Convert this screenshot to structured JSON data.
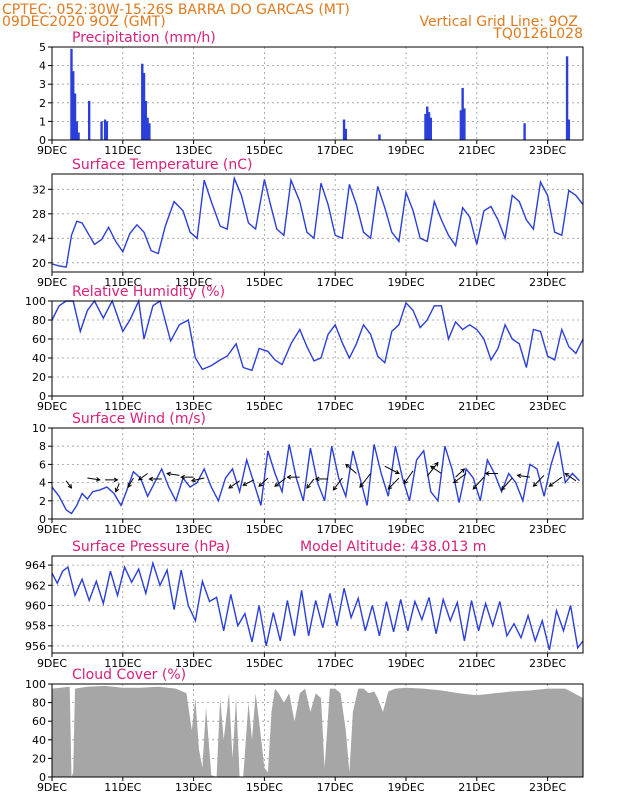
{
  "header": {
    "line1": "CPTEC:   052:30W-15:26S  BARRA DO GARCAS (MT)",
    "line2": "09DEC2020 9OZ (GMT)",
    "grid_note": "Vertical Grid Line: 9OZ",
    "code": "TQ0126L028"
  },
  "colors": {
    "header": "#e07a1e",
    "panel_title": "#d8217a",
    "series": "#2b3fd9",
    "cloud": "#a6a6a6"
  },
  "x_axis": {
    "ticks": [
      "9DEC",
      "11DEC",
      "13DEC",
      "15DEC",
      "17DEC",
      "19DEC",
      "21DEC",
      "23DEC"
    ],
    "tick_days": [
      0,
      2,
      4,
      6,
      8,
      10,
      12,
      14
    ],
    "range_days": [
      0,
      15
    ]
  },
  "chart_data": [
    {
      "id": "precip",
      "type": "bar",
      "title": "Precipitation (mm/h)",
      "ylim": [
        0,
        5
      ],
      "yticks": [
        0,
        1,
        2,
        3,
        4,
        5
      ],
      "x_days": [
        0.55,
        0.6,
        0.65,
        0.7,
        0.75,
        1.05,
        1.4,
        1.5,
        1.55,
        2.55,
        2.6,
        2.65,
        2.7,
        2.75,
        8.25,
        8.3,
        9.25,
        10.55,
        10.6,
        10.65,
        10.7,
        11.55,
        11.6,
        11.65,
        13.35,
        14.55,
        14.6
      ],
      "values": [
        4.9,
        3.7,
        2.5,
        1.0,
        0.4,
        2.1,
        1.0,
        1.1,
        1.0,
        4.1,
        3.6,
        2.1,
        1.2,
        0.9,
        1.1,
        0.6,
        0.3,
        1.4,
        1.8,
        1.5,
        1.2,
        1.6,
        2.8,
        1.7,
        0.9,
        4.5,
        1.1
      ]
    },
    {
      "id": "temp",
      "type": "line",
      "title": "Surface Temperature (nC)",
      "ylim": [
        18.5,
        34.5
      ],
      "yticks": [
        20,
        24,
        28,
        32
      ],
      "x_days": [
        0,
        0.2,
        0.4,
        0.55,
        0.7,
        0.85,
        1.0,
        1.2,
        1.4,
        1.6,
        1.8,
        2.0,
        2.2,
        2.4,
        2.6,
        2.8,
        3.0,
        3.2,
        3.45,
        3.7,
        3.9,
        4.1,
        4.3,
        4.5,
        4.75,
        4.95,
        5.15,
        5.35,
        5.55,
        5.75,
        6.0,
        6.15,
        6.35,
        6.55,
        6.75,
        7.0,
        7.2,
        7.4,
        7.6,
        7.8,
        8.0,
        8.2,
        8.4,
        8.6,
        8.8,
        9.0,
        9.2,
        9.4,
        9.6,
        9.8,
        10.0,
        10.2,
        10.4,
        10.6,
        10.8,
        11.0,
        11.2,
        11.4,
        11.6,
        11.8,
        12.0,
        12.2,
        12.4,
        12.6,
        12.8,
        13.0,
        13.2,
        13.4,
        13.6,
        13.8,
        14.0,
        14.2,
        14.4,
        14.6,
        14.8,
        15.0
      ],
      "values": [
        19.8,
        19.5,
        19.3,
        24.5,
        26.8,
        26.5,
        25.0,
        23.0,
        23.8,
        25.8,
        23.5,
        21.8,
        24.8,
        26.2,
        25.0,
        22.0,
        21.5,
        26.0,
        30.0,
        28.5,
        25.0,
        24.0,
        33.5,
        30.0,
        26.0,
        25.5,
        33.8,
        31.0,
        26.5,
        25.5,
        33.6,
        30.0,
        25.5,
        24.5,
        33.5,
        30.0,
        25.0,
        24.0,
        33.0,
        29.5,
        24.5,
        24.0,
        32.8,
        29.5,
        25.0,
        24.0,
        32.5,
        29.0,
        25.0,
        23.5,
        31.5,
        28.5,
        24.0,
        23.5,
        30.0,
        27.0,
        24.5,
        22.8,
        29.0,
        27.5,
        23.0,
        28.5,
        29.2,
        27.0,
        24.0,
        31.0,
        30.0,
        27.0,
        25.5,
        33.2,
        31.0,
        25.0,
        24.5,
        31.8,
        31.0,
        29.5
      ]
    },
    {
      "id": "rh",
      "type": "line",
      "title": "Relative Humidity (%)",
      "ylim": [
        0,
        100
      ],
      "yticks": [
        0,
        20,
        40,
        60,
        80,
        100
      ],
      "x_days": [
        0,
        0.2,
        0.4,
        0.6,
        0.8,
        1.0,
        1.2,
        1.45,
        1.7,
        2.0,
        2.2,
        2.45,
        2.6,
        2.85,
        3.05,
        3.35,
        3.6,
        3.85,
        4.05,
        4.25,
        4.5,
        4.75,
        4.95,
        5.2,
        5.4,
        5.65,
        5.85,
        6.1,
        6.3,
        6.5,
        6.75,
        7.0,
        7.2,
        7.4,
        7.6,
        7.8,
        8.0,
        8.2,
        8.4,
        8.6,
        8.8,
        9.0,
        9.2,
        9.4,
        9.6,
        9.8,
        10.0,
        10.2,
        10.4,
        10.6,
        10.8,
        11.0,
        11.2,
        11.4,
        11.6,
        11.8,
        12.0,
        12.2,
        12.4,
        12.6,
        12.8,
        13.0,
        13.2,
        13.4,
        13.6,
        13.8,
        14.0,
        14.2,
        14.4,
        14.6,
        14.8,
        15.0
      ],
      "values": [
        80,
        95,
        100,
        100,
        68,
        90,
        100,
        82,
        100,
        68,
        80,
        100,
        60,
        95,
        100,
        58,
        75,
        80,
        40,
        28,
        32,
        38,
        42,
        55,
        30,
        27,
        50,
        47,
        38,
        33,
        55,
        70,
        52,
        37,
        40,
        65,
        75,
        56,
        40,
        55,
        75,
        65,
        42,
        35,
        68,
        75,
        98,
        90,
        72,
        80,
        95,
        95,
        60,
        78,
        70,
        75,
        70,
        60,
        38,
        50,
        75,
        60,
        55,
        30,
        70,
        68,
        42,
        38,
        70,
        52,
        45,
        60
      ]
    },
    {
      "id": "wind",
      "type": "line",
      "title": "Surface Wind (m/s)",
      "ylim": [
        0,
        10
      ],
      "yticks": [
        0,
        2,
        4,
        6,
        8,
        10
      ],
      "x_days": [
        0,
        0.2,
        0.4,
        0.55,
        0.7,
        0.85,
        1.0,
        1.15,
        1.35,
        1.55,
        1.75,
        1.95,
        2.1,
        2.3,
        2.5,
        2.7,
        2.9,
        3.1,
        3.3,
        3.5,
        3.7,
        3.9,
        4.1,
        4.3,
        4.5,
        4.7,
        4.9,
        5.1,
        5.3,
        5.5,
        5.7,
        5.9,
        6.1,
        6.3,
        6.5,
        6.7,
        6.9,
        7.1,
        7.3,
        7.5,
        7.7,
        7.9,
        8.1,
        8.3,
        8.5,
        8.7,
        8.9,
        9.1,
        9.3,
        9.5,
        9.7,
        9.9,
        10.1,
        10.3,
        10.5,
        10.7,
        10.9,
        11.1,
        11.3,
        11.5,
        11.7,
        11.9,
        12.1,
        12.3,
        12.5,
        12.7,
        12.9,
        13.1,
        13.3,
        13.5,
        13.7,
        13.9,
        14.1,
        14.3,
        14.5,
        14.7,
        14.9
      ],
      "values": [
        3.5,
        2.5,
        1.0,
        0.6,
        1.5,
        2.8,
        2.2,
        3.0,
        3.2,
        3.5,
        2.8,
        1.5,
        3.0,
        5.2,
        4.5,
        2.5,
        4.0,
        5.5,
        3.5,
        2.0,
        4.5,
        3.5,
        4.0,
        5.5,
        3.5,
        2.0,
        4.5,
        5.5,
        3.0,
        6.5,
        4.0,
        1.5,
        7.5,
        5.0,
        3.0,
        8.2,
        4.5,
        2.0,
        7.8,
        4.0,
        2.0,
        8.0,
        4.5,
        2.5,
        7.5,
        4.5,
        1.5,
        8.2,
        5.0,
        2.5,
        8.0,
        4.5,
        2.0,
        6.5,
        7.5,
        3.0,
        2.0,
        8.0,
        5.5,
        1.8,
        5.5,
        4.5,
        2.0,
        6.5,
        5.0,
        3.0,
        5.0,
        4.0,
        2.0,
        6.0,
        5.5,
        2.5,
        6.0,
        8.5,
        4.0,
        5.0,
        4.2
      ],
      "arrows": [
        {
          "x": 0.4,
          "y": 4.2,
          "dx": 0.15,
          "dy": -0.8
        },
        {
          "x": 1.0,
          "y": 4.5,
          "dx": 0.35,
          "dy": -0.2
        },
        {
          "x": 1.5,
          "y": 4.3,
          "dx": 0.35,
          "dy": 0.0
        },
        {
          "x": 1.9,
          "y": 3.9,
          "dx": -0.1,
          "dy": -0.9
        },
        {
          "x": 2.3,
          "y": 4.5,
          "dx": -0.15,
          "dy": -1.0
        },
        {
          "x": 2.7,
          "y": 5.0,
          "dx": -0.25,
          "dy": -0.7
        },
        {
          "x": 3.1,
          "y": 4.4,
          "dx": -0.35,
          "dy": 0.0
        },
        {
          "x": 3.6,
          "y": 4.8,
          "dx": -0.35,
          "dy": 0.2
        },
        {
          "x": 4.0,
          "y": 4.6,
          "dx": -0.35,
          "dy": 0.0
        },
        {
          "x": 4.3,
          "y": 4.5,
          "dx": -0.35,
          "dy": -0.3
        },
        {
          "x": 5.3,
          "y": 4.2,
          "dx": -0.3,
          "dy": -0.8
        },
        {
          "x": 5.7,
          "y": 4.3,
          "dx": -0.3,
          "dy": -0.6
        },
        {
          "x": 6.1,
          "y": 4.5,
          "dx": -0.25,
          "dy": -0.9
        },
        {
          "x": 6.6,
          "y": 4.5,
          "dx": -0.3,
          "dy": -0.9
        },
        {
          "x": 7.0,
          "y": 4.6,
          "dx": -0.35,
          "dy": 0.0
        },
        {
          "x": 7.4,
          "y": 4.4,
          "dx": -0.2,
          "dy": -1.0
        },
        {
          "x": 7.8,
          "y": 4.4,
          "dx": -0.35,
          "dy": 0.0
        },
        {
          "x": 8.2,
          "y": 4.5,
          "dx": -0.25,
          "dy": -1.3
        },
        {
          "x": 8.6,
          "y": 5.0,
          "dx": -0.3,
          "dy": 1.0
        },
        {
          "x": 9.0,
          "y": 5.0,
          "dx": -0.3,
          "dy": -1.5
        },
        {
          "x": 9.4,
          "y": 5.8,
          "dx": 0.4,
          "dy": -0.8
        },
        {
          "x": 9.8,
          "y": 4.5,
          "dx": -0.3,
          "dy": -1.2
        },
        {
          "x": 10.2,
          "y": 5.3,
          "dx": -0.25,
          "dy": -1.4
        },
        {
          "x": 10.6,
          "y": 4.7,
          "dx": 0.3,
          "dy": 1.5
        },
        {
          "x": 11.0,
          "y": 5.0,
          "dx": -0.3,
          "dy": 0.8
        },
        {
          "x": 11.4,
          "y": 4.6,
          "dx": 0.25,
          "dy": 0.9
        },
        {
          "x": 11.7,
          "y": 5.0,
          "dx": -0.35,
          "dy": -1.0
        },
        {
          "x": 12.2,
          "y": 4.6,
          "dx": -0.3,
          "dy": -1.3
        },
        {
          "x": 12.6,
          "y": 5.0,
          "dx": -0.35,
          "dy": 0.0
        },
        {
          "x": 13.0,
          "y": 4.5,
          "dx": -0.3,
          "dy": -1.3
        },
        {
          "x": 13.5,
          "y": 4.6,
          "dx": -0.35,
          "dy": 0.2
        },
        {
          "x": 13.9,
          "y": 4.8,
          "dx": -0.3,
          "dy": -1.2
        },
        {
          "x": 14.4,
          "y": 4.6,
          "dx": -0.35,
          "dy": -1.0
        },
        {
          "x": 14.8,
          "y": 4.2,
          "dx": -0.3,
          "dy": 0.8
        }
      ]
    },
    {
      "id": "pres",
      "type": "line",
      "title": "Surface Pressure (hPa)",
      "subtitle": "Model Altitude: 438.013 m",
      "ylim": [
        955.3,
        964.9
      ],
      "yticks": [
        956,
        958,
        960,
        962,
        964
      ],
      "x_days": [
        0,
        0.15,
        0.3,
        0.45,
        0.65,
        0.85,
        1.05,
        1.25,
        1.45,
        1.65,
        1.85,
        2.05,
        2.25,
        2.45,
        2.65,
        2.85,
        3.05,
        3.25,
        3.45,
        3.65,
        3.85,
        4.05,
        4.25,
        4.45,
        4.65,
        4.85,
        5.05,
        5.25,
        5.45,
        5.65,
        5.85,
        6.05,
        6.25,
        6.45,
        6.65,
        6.85,
        7.05,
        7.25,
        7.45,
        7.65,
        7.85,
        8.05,
        8.25,
        8.45,
        8.65,
        8.85,
        9.05,
        9.25,
        9.45,
        9.65,
        9.85,
        10.05,
        10.25,
        10.45,
        10.65,
        10.85,
        11.05,
        11.25,
        11.45,
        11.65,
        11.85,
        12.05,
        12.25,
        12.45,
        12.65,
        12.85,
        13.05,
        13.25,
        13.45,
        13.65,
        13.85,
        14.05,
        14.25,
        14.45,
        14.65,
        14.85,
        15.0
      ],
      "values": [
        963.2,
        962.2,
        963.4,
        963.8,
        961.0,
        962.6,
        960.5,
        962.4,
        960.2,
        963.4,
        961.0,
        963.8,
        962.3,
        963.6,
        961.2,
        964.2,
        962.0,
        963.5,
        959.6,
        963.5,
        960.0,
        958.5,
        962.4,
        960.4,
        960.8,
        957.5,
        961.1,
        958.0,
        959.2,
        956.4,
        960.0,
        956.0,
        959.3,
        956.5,
        960.5,
        957.0,
        961.5,
        957.0,
        960.5,
        957.8,
        961.2,
        958.0,
        961.7,
        958.8,
        960.7,
        957.5,
        960.0,
        957.0,
        960.4,
        957.4,
        960.6,
        957.5,
        960.4,
        958.6,
        960.8,
        957.2,
        960.6,
        958.5,
        960.3,
        956.5,
        960.5,
        957.5,
        960.2,
        958.0,
        960.4,
        957.0,
        958.2,
        956.8,
        959.0,
        956.5,
        958.5,
        955.6,
        959.5,
        957.5,
        960.0,
        955.8,
        956.5
      ]
    },
    {
      "id": "cloud",
      "type": "area",
      "title": "Cloud Cover (%)",
      "ylim": [
        0,
        100
      ],
      "yticks": [
        0,
        20,
        40,
        60,
        80,
        100
      ],
      "x_days": [
        0,
        0.5,
        0.55,
        0.6,
        0.65,
        1.0,
        1.5,
        2.0,
        2.5,
        3.0,
        3.5,
        3.8,
        3.95,
        4.05,
        4.15,
        4.25,
        4.35,
        4.5,
        4.65,
        4.75,
        4.85,
        5.0,
        5.1,
        5.2,
        5.3,
        5.4,
        5.55,
        5.65,
        5.75,
        5.85,
        6.0,
        6.1,
        6.2,
        6.3,
        6.4,
        6.55,
        6.7,
        6.85,
        7.0,
        7.15,
        7.3,
        7.45,
        7.6,
        7.7,
        7.85,
        8.0,
        8.15,
        8.3,
        8.4,
        8.5,
        8.65,
        8.8,
        8.95,
        9.1,
        9.2,
        9.35,
        9.5,
        9.7,
        10.0,
        10.5,
        11.0,
        11.5,
        12.0,
        12.5,
        13.0,
        13.5,
        14.0,
        14.5,
        15.0
      ],
      "values": [
        95,
        97,
        0,
        5,
        95,
        97,
        98,
        96,
        96,
        97,
        95,
        90,
        50,
        85,
        30,
        10,
        75,
        2,
        0,
        85,
        40,
        90,
        20,
        85,
        0,
        0,
        80,
        40,
        90,
        60,
        10,
        5,
        70,
        95,
        90,
        80,
        90,
        60,
        90,
        95,
        70,
        90,
        85,
        10,
        95,
        95,
        90,
        50,
        5,
        70,
        95,
        95,
        90,
        92,
        85,
        70,
        92,
        95,
        96,
        95,
        93,
        90,
        88,
        90,
        92,
        93,
        95,
        95,
        85
      ]
    }
  ]
}
